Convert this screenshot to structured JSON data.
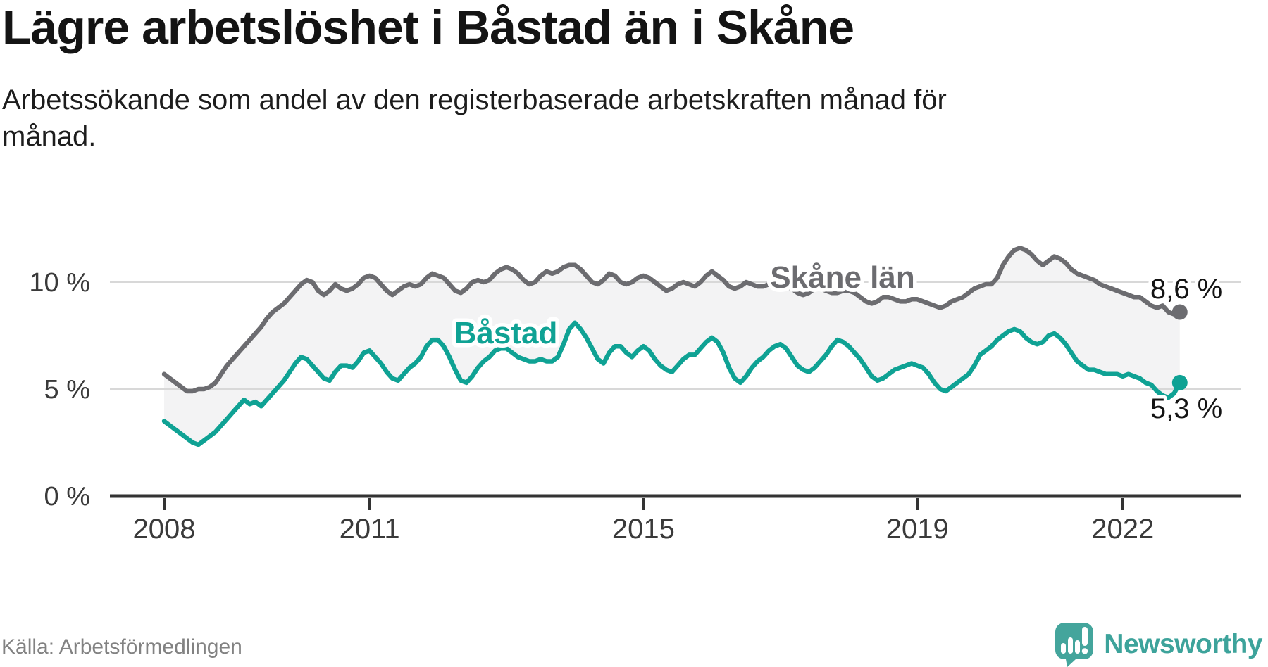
{
  "header": {
    "title": "Lägre arbetslöshet i Båstad än i Skåne",
    "subtitle": "Arbetssökande som andel av den registerbaserade arbetskraften månad för månad."
  },
  "footer": {
    "source": "Källa: Arbetsförmedlingen",
    "brand": "Newsworthy"
  },
  "colors": {
    "skane_line": "#6c6c70",
    "bastad_line": "#0fa294",
    "fill_between": "#f3f3f4",
    "gridline": "#d8d8d8",
    "axis": "#333333",
    "tick_text": "#3a3a3a",
    "value_text": "#141414",
    "brand_teal": "#44a59c"
  },
  "chart_data": {
    "type": "line",
    "title": "Lägre arbetslöshet i Båstad än i Skåne",
    "xlabel": "",
    "ylabel": "",
    "unit": "%",
    "x_unit": "month",
    "x_start": "2008-01",
    "x_end": "2022-11",
    "x_ticks": [
      2008,
      2011,
      2015,
      2019,
      2022
    ],
    "y_ticks": [
      {
        "value": 0,
        "label": "0 %"
      },
      {
        "value": 5,
        "label": "5 %"
      },
      {
        "value": 10,
        "label": "10 %"
      }
    ],
    "ylim": [
      0,
      12.4
    ],
    "grid": "horizontal",
    "legend_position": "inline-labels",
    "fill_between_series": true,
    "series": [
      {
        "name": "Skåne län",
        "end_label": "8,6 %",
        "end_value": 8.6,
        "values": [
          5.7,
          5.5,
          5.3,
          5.1,
          4.9,
          4.9,
          5.0,
          5.0,
          5.1,
          5.3,
          5.7,
          6.1,
          6.4,
          6.7,
          7.0,
          7.3,
          7.6,
          7.9,
          8.3,
          8.6,
          8.8,
          9.0,
          9.3,
          9.6,
          9.9,
          10.1,
          10.0,
          9.6,
          9.4,
          9.6,
          9.9,
          9.7,
          9.6,
          9.7,
          9.9,
          10.2,
          10.3,
          10.2,
          9.9,
          9.6,
          9.4,
          9.6,
          9.8,
          9.9,
          9.8,
          9.9,
          10.2,
          10.4,
          10.3,
          10.2,
          9.9,
          9.6,
          9.5,
          9.7,
          10.0,
          10.1,
          10.0,
          10.1,
          10.4,
          10.6,
          10.7,
          10.6,
          10.4,
          10.1,
          9.9,
          10.0,
          10.3,
          10.5,
          10.4,
          10.5,
          10.7,
          10.8,
          10.8,
          10.6,
          10.3,
          10.0,
          9.9,
          10.1,
          10.4,
          10.3,
          10.0,
          9.9,
          10.0,
          10.2,
          10.3,
          10.2,
          10.0,
          9.8,
          9.6,
          9.7,
          9.9,
          10.0,
          9.9,
          9.8,
          10.0,
          10.3,
          10.5,
          10.3,
          10.1,
          9.8,
          9.7,
          9.8,
          10.0,
          9.9,
          9.8,
          9.8,
          9.9,
          10.0,
          9.9,
          9.8,
          9.7,
          9.5,
          9.4,
          9.5,
          9.7,
          9.7,
          9.6,
          9.5,
          9.5,
          9.6,
          9.6,
          9.5,
          9.3,
          9.1,
          9.0,
          9.1,
          9.3,
          9.3,
          9.2,
          9.1,
          9.1,
          9.2,
          9.2,
          9.1,
          9.0,
          8.9,
          8.8,
          8.9,
          9.1,
          9.2,
          9.3,
          9.5,
          9.7,
          9.8,
          9.9,
          9.9,
          10.2,
          10.8,
          11.2,
          11.5,
          11.6,
          11.5,
          11.3,
          11.0,
          10.8,
          11.0,
          11.2,
          11.1,
          10.9,
          10.6,
          10.4,
          10.3,
          10.2,
          10.1,
          9.9,
          9.8,
          9.7,
          9.6,
          9.5,
          9.4,
          9.3,
          9.3,
          9.1,
          8.9,
          8.8,
          8.9,
          8.6,
          8.5,
          8.6
        ]
      },
      {
        "name": "Båstad",
        "end_label": "5,3 %",
        "end_value": 5.3,
        "values": [
          3.5,
          3.3,
          3.1,
          2.9,
          2.7,
          2.5,
          2.4,
          2.6,
          2.8,
          3.0,
          3.3,
          3.6,
          3.9,
          4.2,
          4.5,
          4.3,
          4.4,
          4.2,
          4.5,
          4.8,
          5.1,
          5.4,
          5.8,
          6.2,
          6.5,
          6.4,
          6.1,
          5.8,
          5.5,
          5.4,
          5.8,
          6.1,
          6.1,
          6.0,
          6.3,
          6.7,
          6.8,
          6.5,
          6.2,
          5.8,
          5.5,
          5.4,
          5.7,
          6.0,
          6.2,
          6.5,
          7.0,
          7.3,
          7.3,
          7.0,
          6.5,
          5.9,
          5.4,
          5.3,
          5.6,
          6.0,
          6.3,
          6.5,
          6.8,
          6.9,
          6.9,
          6.7,
          6.5,
          6.4,
          6.3,
          6.3,
          6.4,
          6.3,
          6.3,
          6.5,
          7.1,
          7.8,
          8.1,
          7.8,
          7.4,
          6.9,
          6.4,
          6.2,
          6.7,
          7.0,
          7.0,
          6.7,
          6.5,
          6.8,
          7.0,
          6.8,
          6.4,
          6.1,
          5.9,
          5.8,
          6.1,
          6.4,
          6.6,
          6.6,
          6.9,
          7.2,
          7.4,
          7.2,
          6.7,
          6.0,
          5.5,
          5.3,
          5.6,
          6.0,
          6.3,
          6.5,
          6.8,
          7.0,
          7.1,
          6.9,
          6.5,
          6.1,
          5.9,
          5.8,
          6.0,
          6.3,
          6.6,
          7.0,
          7.3,
          7.2,
          7.0,
          6.7,
          6.4,
          6.0,
          5.6,
          5.4,
          5.5,
          5.7,
          5.9,
          6.0,
          6.1,
          6.2,
          6.1,
          6.0,
          5.7,
          5.3,
          5.0,
          4.9,
          5.1,
          5.3,
          5.5,
          5.7,
          6.1,
          6.6,
          6.8,
          7.0,
          7.3,
          7.5,
          7.7,
          7.8,
          7.7,
          7.4,
          7.2,
          7.1,
          7.2,
          7.5,
          7.6,
          7.4,
          7.1,
          6.7,
          6.3,
          6.1,
          5.9,
          5.9,
          5.8,
          5.7,
          5.7,
          5.7,
          5.6,
          5.7,
          5.6,
          5.5,
          5.3,
          5.2,
          4.9,
          4.7,
          4.6,
          4.8,
          5.3
        ]
      }
    ]
  }
}
